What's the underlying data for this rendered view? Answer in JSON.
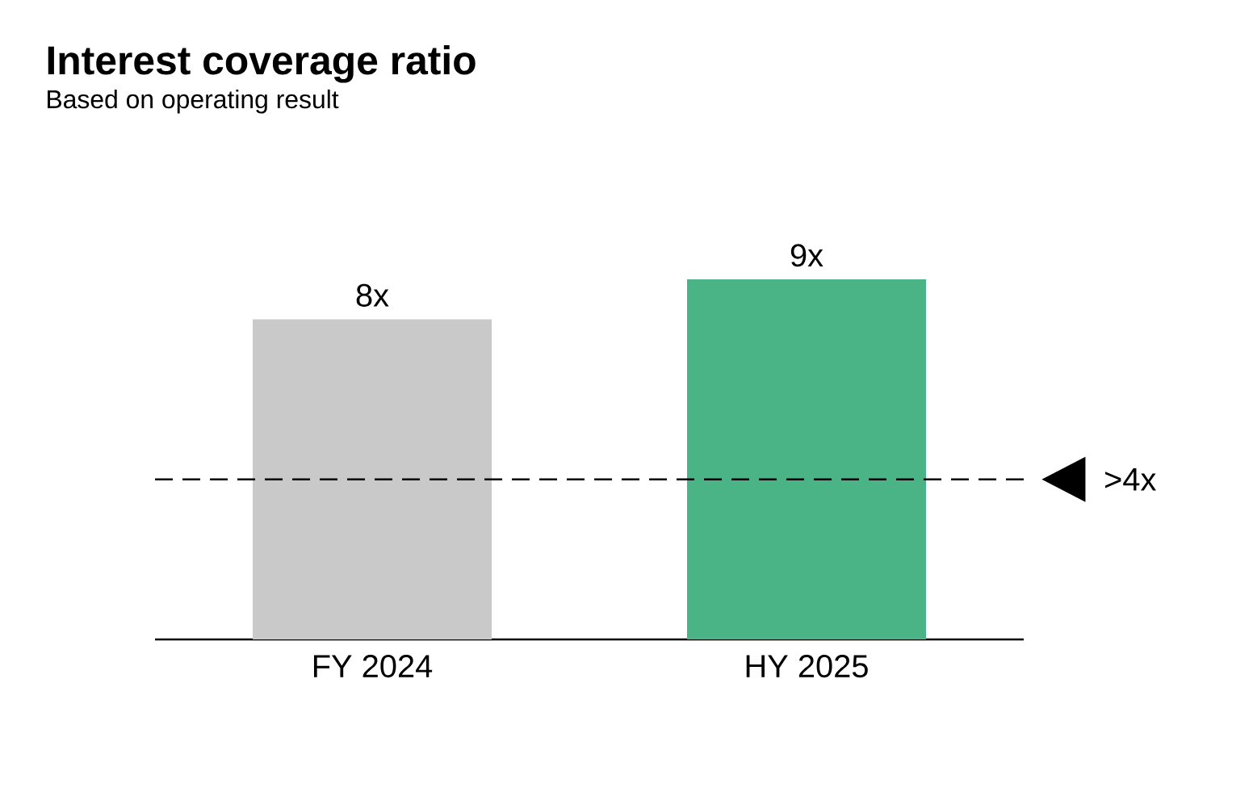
{
  "chart_data": {
    "type": "bar",
    "title": "Interest coverage ratio",
    "subtitle": "Based on operating result",
    "categories": [
      "FY 2024",
      "HY 2025"
    ],
    "values": [
      8,
      9
    ],
    "colors": [
      "#c9c9c9",
      "#4ab487"
    ],
    "value_labels": [
      "8x",
      "9x"
    ],
    "ref_lines": [
      {
        "axis": "y",
        "value": 4,
        "label": ">4x",
        "color": "#000000",
        "line_style": "dashed"
      }
    ]
  }
}
